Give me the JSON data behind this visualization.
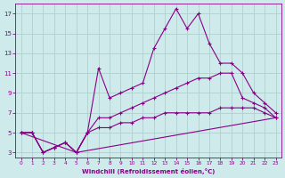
{
  "xlabel": "Windchill (Refroidissement éolien,°C)",
  "bg_color": "#ceeaea",
  "line_color": "#880088",
  "grid_color": "#b0d0d0",
  "series1": {
    "points": [
      [
        0,
        5
      ],
      [
        1,
        5
      ],
      [
        2,
        3
      ],
      [
        3,
        3.5
      ],
      [
        4,
        4
      ],
      [
        5,
        3
      ],
      [
        6,
        5
      ],
      [
        7,
        11.5
      ],
      [
        8,
        8.5
      ],
      [
        9,
        9
      ],
      [
        10,
        9.5
      ],
      [
        11,
        10
      ],
      [
        12,
        13.5
      ],
      [
        13,
        15.5
      ],
      [
        14,
        17.5
      ],
      [
        15,
        15.5
      ],
      [
        16,
        17
      ],
      [
        17,
        14
      ],
      [
        18,
        12
      ],
      [
        19,
        12
      ],
      [
        20,
        11
      ],
      [
        21,
        9
      ],
      [
        22,
        8
      ],
      [
        23,
        7
      ]
    ]
  },
  "series2": {
    "points": [
      [
        0,
        5
      ],
      [
        1,
        5
      ],
      [
        2,
        3
      ],
      [
        3,
        3.5
      ],
      [
        4,
        4
      ],
      [
        5,
        3
      ],
      [
        6,
        5
      ],
      [
        7,
        6.5
      ],
      [
        8,
        6.5
      ],
      [
        9,
        7
      ],
      [
        10,
        7.5
      ],
      [
        11,
        8
      ],
      [
        12,
        8.5
      ],
      [
        13,
        9
      ],
      [
        14,
        9.5
      ],
      [
        15,
        10
      ],
      [
        16,
        10.5
      ],
      [
        17,
        10.5
      ],
      [
        18,
        11
      ],
      [
        19,
        11
      ],
      [
        20,
        8.5
      ],
      [
        21,
        8
      ],
      [
        22,
        7.5
      ],
      [
        23,
        6.5
      ]
    ]
  },
  "series3": {
    "points": [
      [
        0,
        5
      ],
      [
        1,
        5
      ],
      [
        2,
        3
      ],
      [
        3,
        3.5
      ],
      [
        4,
        4
      ],
      [
        5,
        3
      ],
      [
        6,
        5
      ],
      [
        7,
        5.5
      ],
      [
        8,
        5.5
      ],
      [
        9,
        6
      ],
      [
        10,
        6
      ],
      [
        11,
        6.5
      ],
      [
        12,
        6.5
      ],
      [
        13,
        7
      ],
      [
        14,
        7
      ],
      [
        15,
        7
      ],
      [
        16,
        7
      ],
      [
        17,
        7
      ],
      [
        18,
        7.5
      ],
      [
        19,
        7.5
      ],
      [
        20,
        7.5
      ],
      [
        21,
        7.5
      ],
      [
        22,
        7
      ],
      [
        23,
        6.5
      ]
    ]
  },
  "series4": {
    "points": [
      [
        0,
        5
      ],
      [
        5,
        3
      ],
      [
        23,
        6.5
      ]
    ]
  },
  "ylim": [
    2.5,
    18
  ],
  "yticks": [
    3,
    5,
    7,
    9,
    11,
    13,
    15,
    17
  ],
  "xticks": [
    0,
    1,
    2,
    3,
    4,
    5,
    6,
    7,
    8,
    9,
    10,
    11,
    12,
    13,
    14,
    15,
    16,
    17,
    18,
    19,
    20,
    21,
    22,
    23
  ]
}
